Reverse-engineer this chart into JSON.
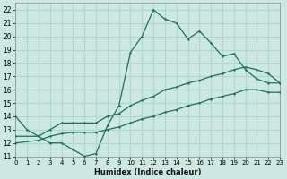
{
  "xlabel": "Humidex (Indice chaleur)",
  "xlim": [
    0,
    23
  ],
  "ylim": [
    11,
    22.5
  ],
  "xticks": [
    0,
    1,
    2,
    3,
    4,
    5,
    6,
    7,
    8,
    9,
    10,
    11,
    12,
    13,
    14,
    15,
    16,
    17,
    18,
    19,
    20,
    21,
    22,
    23
  ],
  "yticks": [
    11,
    12,
    13,
    14,
    15,
    16,
    17,
    18,
    19,
    20,
    21,
    22
  ],
  "bg_color": "#cce8e0",
  "line_color": "#1a7060",
  "grid_color": "#b0d8d0",
  "line1_x": [
    0,
    1,
    2,
    3,
    4,
    5,
    6,
    7,
    8,
    9,
    10,
    11,
    12,
    13,
    14,
    15,
    16,
    17,
    18,
    19,
    20,
    21,
    22,
    23
  ],
  "line1_y": [
    14,
    13,
    12.5,
    12,
    12,
    11.5,
    11.0,
    11.2,
    13.3,
    14.8,
    18.8,
    20.0,
    22.0,
    21.3,
    21.0,
    19.8,
    20.4,
    19.5,
    18.5,
    18.7,
    17.5,
    16.8,
    16.5,
    16.5
  ],
  "line2_x": [
    0,
    2,
    3,
    4,
    5,
    6,
    7,
    8,
    9,
    10,
    11,
    12,
    13,
    14,
    15,
    16,
    17,
    18,
    19,
    20,
    21,
    22,
    23
  ],
  "line2_y": [
    12.5,
    12.5,
    13.0,
    13.5,
    13.5,
    13.5,
    13.5,
    14.0,
    14.2,
    14.8,
    15.2,
    15.5,
    16.0,
    16.2,
    16.5,
    16.7,
    17.0,
    17.2,
    17.5,
    17.7,
    17.5,
    17.2,
    16.5
  ],
  "line3_x": [
    0,
    2,
    3,
    4,
    5,
    6,
    7,
    8,
    9,
    10,
    11,
    12,
    13,
    14,
    15,
    16,
    17,
    18,
    19,
    20,
    21,
    22,
    23
  ],
  "line3_y": [
    12.0,
    12.2,
    12.5,
    12.7,
    12.8,
    12.8,
    12.8,
    13.0,
    13.2,
    13.5,
    13.8,
    14.0,
    14.3,
    14.5,
    14.8,
    15.0,
    15.3,
    15.5,
    15.7,
    16.0,
    16.0,
    15.8,
    15.8
  ]
}
